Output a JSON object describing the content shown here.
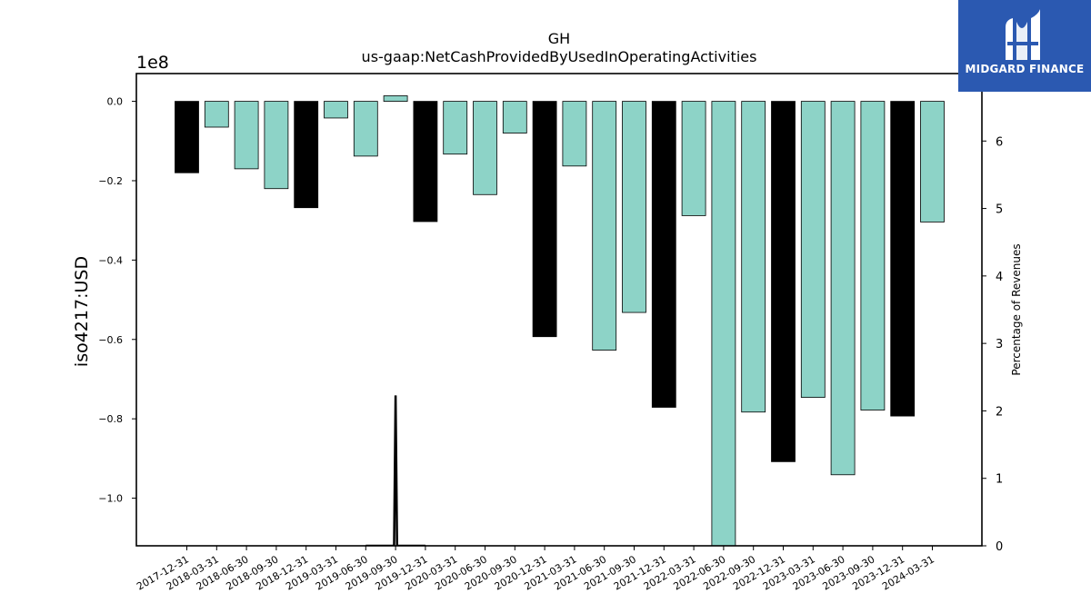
{
  "chart_data": {
    "type": "bar",
    "title": "GH",
    "subtitle": "us-gaap:NetCashProvidedByUsedInOperatingActivities",
    "ylabel": "iso4217:USD",
    "y_offset_label": "1e8",
    "y2label": "Percentage of Revenues",
    "categories": [
      "2017-12-31",
      "2018-03-31",
      "2018-06-30",
      "2018-09-30",
      "2018-12-31",
      "2019-03-31",
      "2019-06-30",
      "2019-09-30",
      "2019-12-31",
      "2020-03-31",
      "2020-06-30",
      "2020-09-30",
      "2020-12-31",
      "2021-03-31",
      "2021-06-30",
      "2021-09-30",
      "2021-12-31",
      "2022-03-31",
      "2022-06-30",
      "2022-09-30",
      "2022-12-31",
      "2023-03-31",
      "2023-06-30",
      "2023-09-30",
      "2023-12-31",
      "2024-03-31"
    ],
    "values": [
      -18000000,
      -6500000,
      -17000000,
      -22000000,
      -26800000,
      -4200000,
      -13800000,
      1400000,
      -30300000,
      -13300000,
      -23500000,
      -8000000,
      -59300000,
      -16300000,
      -62700000,
      -53200000,
      -77100000,
      -28800000,
      -112000000,
      -78300000,
      -90800000,
      -74600000,
      -94100000,
      -77800000,
      -79300000,
      -30400000
    ],
    "annual": [
      true,
      false,
      false,
      false,
      true,
      false,
      false,
      false,
      true,
      false,
      false,
      false,
      true,
      false,
      false,
      false,
      true,
      false,
      false,
      false,
      true,
      false,
      false,
      false,
      true,
      false
    ],
    "ylim": [
      -112000000,
      7000000
    ],
    "y_ticks": [
      0,
      -20000000,
      -40000000,
      -60000000,
      -80000000,
      -100000000
    ],
    "y_tick_labels": [
      "0.0",
      "−0.2",
      "−0.4",
      "−0.6",
      "−0.8",
      "−1.0"
    ],
    "y2lim": [
      0,
      7
    ],
    "y2_ticks": [
      0,
      1,
      2,
      3,
      4,
      5,
      6,
      7
    ],
    "y2_tick_labels": [
      "0",
      "1",
      "2",
      "3",
      "4",
      "5",
      "6",
      "7"
    ],
    "ratio_line": {
      "x": [
        6,
        6.95,
        7,
        7.05,
        8
      ],
      "y": [
        0,
        0,
        2.23,
        0,
        0
      ]
    },
    "colors": {
      "annual": "#000000",
      "quarter": "#8dd3c7",
      "line": "#000000"
    }
  },
  "logo": {
    "text": "MIDGARD FINANCE"
  }
}
